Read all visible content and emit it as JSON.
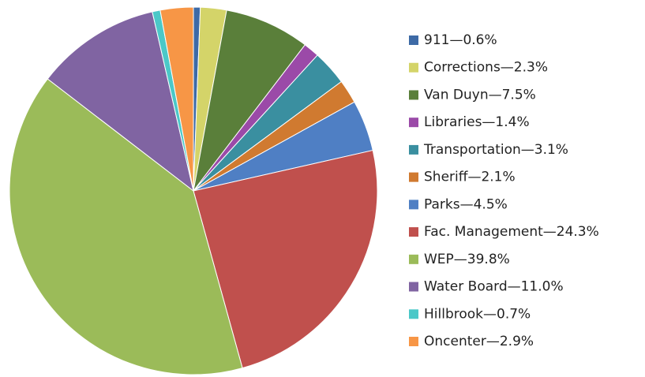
{
  "chart_data": {
    "type": "pie",
    "categories": [
      "911—0.6%",
      "Corrections—2.3%",
      "Van Duyn—7.5%",
      "Libraries—1.4%",
      "Transportation—3.1%",
      "Sheriff—2.1%",
      "Parks—4.5%",
      "Fac. Management—24.3%",
      "WEP—39.8%",
      "Water Board—11.0%",
      "Hillbrook—0.7%",
      "Oncenter—2.9%"
    ],
    "values": [
      0.6,
      2.3,
      7.5,
      1.4,
      3.1,
      2.1,
      4.5,
      24.3,
      39.8,
      11.0,
      0.7,
      2.9
    ],
    "colors": [
      "#3d6aa6",
      "#d4d469",
      "#5a7f3a",
      "#9b4aa8",
      "#3a8fa0",
      "#d07a30",
      "#4f7fc4",
      "#c0504d",
      "#9bbb59",
      "#8064a2",
      "#4bc8c8",
      "#f79646"
    ],
    "legend": "right"
  }
}
